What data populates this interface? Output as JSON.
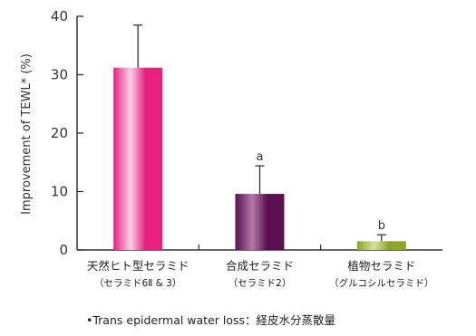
{
  "chart_data": {
    "type": "bar",
    "title": "",
    "xlabel": "",
    "ylabel": "Improvement of TEWL* (%)",
    "ylim": [
      0,
      40
    ],
    "yticks": [
      0,
      10,
      20,
      30,
      40
    ],
    "categories": [
      {
        "name": "天然ヒト型セラミド",
        "sub": "（セラミド6Ⅱ & 3）",
        "value": 31.2,
        "error_upper": 38.5,
        "annotation": "",
        "color_top": "#e8207f",
        "color_light": "#fbd0e6"
      },
      {
        "name": "合成セラミド",
        "sub": "（セラミド2）",
        "value": 9.6,
        "error_upper": 14.4,
        "annotation": "a",
        "color_top": "#5a1050",
        "color_light": "#b27aa8"
      },
      {
        "name": "植物セラミド",
        "sub": "（グルコシルセラミド）",
        "value": 1.5,
        "error_upper": 2.6,
        "annotation": "b",
        "color_top": "#8aa52a",
        "color_light": "#d4e29a"
      }
    ],
    "grid": false,
    "legend": "none"
  },
  "footnote": "•Trans epidermal water loss：経皮水分蒸散量"
}
